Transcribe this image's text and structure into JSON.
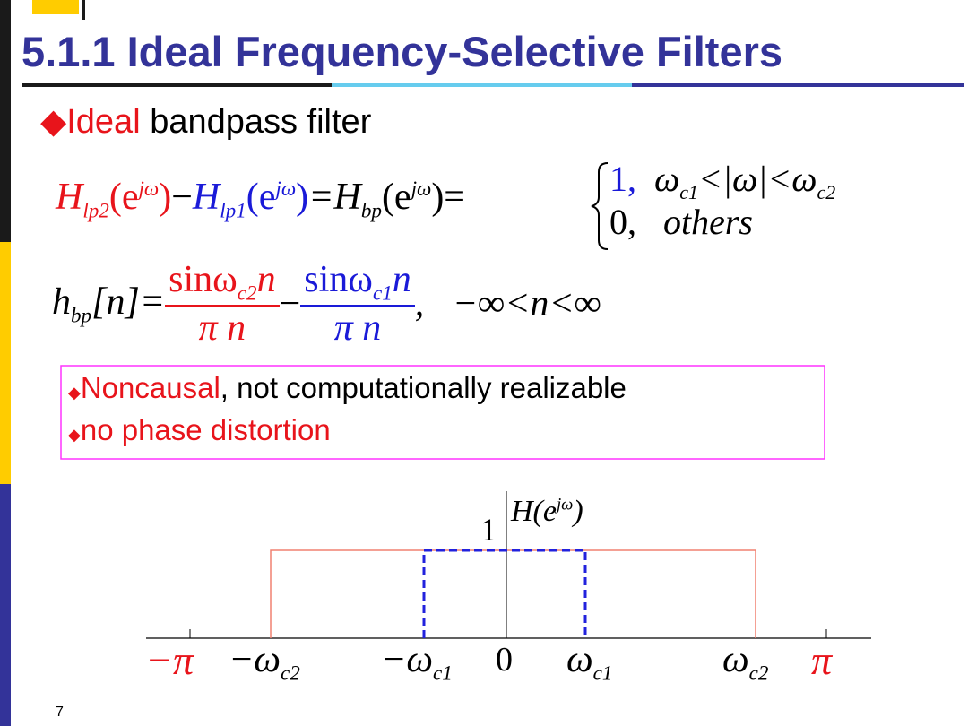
{
  "header": {
    "title": "5.1.1 Ideal Frequency-Selective Filters"
  },
  "bullet": {
    "marker": "◆",
    "highlight": "Ideal",
    "rest": " bandpass filter"
  },
  "formula1": {
    "lp2": [
      "H",
      "lp2",
      "(e",
      "jω",
      ")"
    ],
    "minus": "−",
    "lp1": [
      "H",
      "lp1",
      "(e",
      "jω",
      ")"
    ],
    "bp": [
      "=H",
      "bp",
      "(e",
      "jω",
      ")="
    ],
    "case1": [
      "1,  ",
      "ω",
      "c1",
      "<|ω|<ω",
      "c2"
    ],
    "case2": [
      "0,   ",
      "others"
    ]
  },
  "formula2": {
    "lhs": [
      "h",
      "bp",
      "[n]="
    ],
    "term1": {
      "num": [
        "sinω",
        "c2",
        "n"
      ],
      "den": "π n"
    },
    "minus": "−",
    "term2": {
      "num": [
        "sinω",
        "c1",
        "n"
      ],
      "den": "π n"
    },
    "range": ",   −∞<n<∞"
  },
  "notes": [
    {
      "marker": "◆",
      "highlight": "Noncausal",
      "rest": ", not computationally realizable"
    },
    {
      "marker": "◆",
      "highlight": "no phase distortion"
    }
  ],
  "plot": {
    "peak": "1",
    "ylabel": [
      "H(e",
      "jω",
      ")"
    ],
    "xlabels": [
      [
        "−π"
      ],
      [
        "−ω",
        "c2"
      ],
      [
        "−ω",
        "c1"
      ],
      [
        "0"
      ],
      [
        "ω",
        "c1"
      ],
      [
        "ω",
        "c2"
      ],
      [
        "π"
      ]
    ]
  },
  "page_number": "7"
}
